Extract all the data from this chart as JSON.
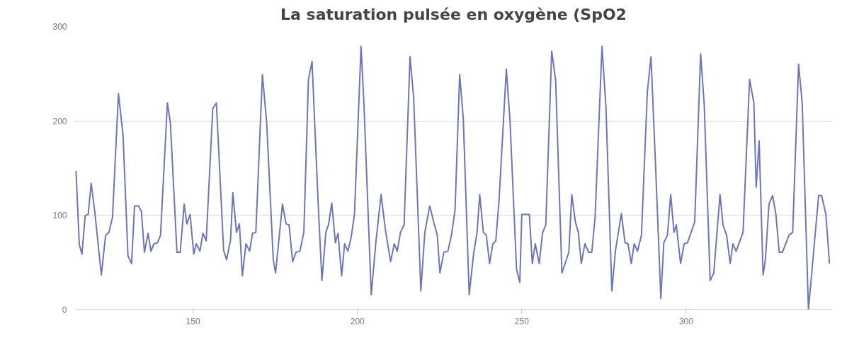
{
  "chart_data": {
    "type": "line",
    "title": "La saturation pulsée en oxygène (SpO2",
    "x": [
      114.4,
      115.4,
      116.2,
      117.2,
      118.1,
      119,
      120.1,
      122.1,
      123.4,
      124.4,
      125.5,
      127.3,
      128.7,
      130.2,
      131.3,
      132.2,
      133.4,
      134.3,
      135.2,
      136.3,
      137.2,
      138.1,
      139.2,
      140.1,
      142.2,
      143.1,
      145.1,
      146.1,
      147.3,
      148.1,
      149.1,
      150.2,
      151,
      152.1,
      153,
      154,
      156,
      157.1,
      159.3,
      160.2,
      161.4,
      162.1,
      163.2,
      164.1,
      165,
      166.1,
      167.2,
      168.1,
      169.1,
      171.1,
      172.4,
      174.4,
      175.1,
      177.2,
      178.3,
      179.2,
      180.3,
      181.3,
      182.5,
      183.7,
      185.1,
      186.2,
      188,
      189.2,
      190.4,
      191.2,
      192.2,
      193.3,
      194.1,
      195.2,
      196.1,
      197.1,
      198.1,
      199.1,
      201.1,
      202,
      204.2,
      205.6,
      207.2,
      208.5,
      210.1,
      211.2,
      212.1,
      213.1,
      214.2,
      216,
      217.1,
      219.3,
      220.5,
      222,
      223.2,
      224.3,
      225.1,
      226.3,
      227.5,
      228.6,
      229.7,
      231.1,
      232.2,
      234,
      235.4,
      236.4,
      237.2,
      238.3,
      239.2,
      240.2,
      241.2,
      242.1,
      243.1,
      245.3,
      246.4,
      248.4,
      249.4,
      250,
      252.3,
      253.2,
      254.1,
      255.3,
      256.3,
      257.3,
      259.1,
      260.3,
      262.2,
      263.2,
      264.3,
      265.2,
      266.3,
      267.2,
      268.1,
      269.2,
      270.3,
      271.3,
      272.3,
      274.4,
      275.6,
      277.4,
      278.5,
      280.3,
      281.4,
      282.3,
      283.3,
      284.2,
      285.2,
      286.4,
      288.2,
      289.3,
      290.7,
      292.3,
      293.2,
      294.3,
      295.3,
      296.3,
      297,
      298.3,
      299.4,
      300.4,
      302.6,
      304.4,
      305.5,
      307.3,
      308.4,
      310.3,
      311.2,
      312.3,
      313.4,
      314.2,
      315.2,
      317.3,
      319.3,
      320.6,
      321.3,
      322.2,
      323.4,
      324.1,
      325.2,
      326.3,
      327.3,
      328.3,
      329.3,
      331.3,
      332.4,
      334.2,
      335.3,
      337.2,
      340.3,
      341.2,
      342.5,
      343.6
    ],
    "series": [
      {
        "color": "#6f76b6",
        "values": [
          147,
          69,
          59,
          100,
          101,
          134,
          104,
          37,
          79,
          82,
          98,
          229,
          185,
          57,
          49,
          110,
          110,
          104,
          61,
          81,
          62,
          70,
          71,
          79,
          219,
          198,
          61,
          61,
          112,
          91,
          101,
          59,
          70,
          62,
          81,
          73,
          213,
          219,
          63,
          53,
          74,
          124,
          82,
          91,
          36,
          70,
          62,
          81,
          82,
          249,
          198,
          53,
          39,
          112,
          91,
          90,
          51,
          61,
          62,
          82,
          244,
          263,
          117,
          31,
          82,
          90,
          113,
          71,
          81,
          36,
          70,
          62,
          77,
          101,
          279,
          217,
          16,
          71,
          122,
          85,
          51,
          70,
          62,
          82,
          90,
          268,
          225,
          20,
          82,
          110,
          93,
          79,
          39,
          61,
          62,
          79,
          106,
          249,
          203,
          16,
          61,
          82,
          122,
          82,
          79,
          49,
          70,
          73,
          117,
          255,
          201,
          43,
          29,
          101,
          101,
          49,
          70,
          49,
          81,
          90,
          274,
          243,
          39,
          49,
          61,
          122,
          93,
          82,
          49,
          70,
          61,
          61,
          98,
          279,
          215,
          20,
          63,
          102,
          71,
          70,
          49,
          70,
          62,
          79,
          231,
          268,
          152,
          12,
          71,
          79,
          122,
          82,
          90,
          49,
          70,
          71,
          93,
          271,
          217,
          31,
          39,
          122,
          90,
          79,
          49,
          70,
          62,
          82,
          244,
          219,
          130,
          179,
          37,
          53,
          112,
          121,
          101,
          61,
          61,
          79,
          82,
          260,
          219,
          0,
          121,
          121,
          101,
          49
        ]
      }
    ],
    "xlim": [
      114,
      344.5
    ],
    "ylim": [
      0,
      300
    ],
    "xticks": [
      150,
      200,
      250,
      300
    ],
    "yticks": [
      0,
      100,
      200,
      300
    ],
    "grid": "y"
  }
}
